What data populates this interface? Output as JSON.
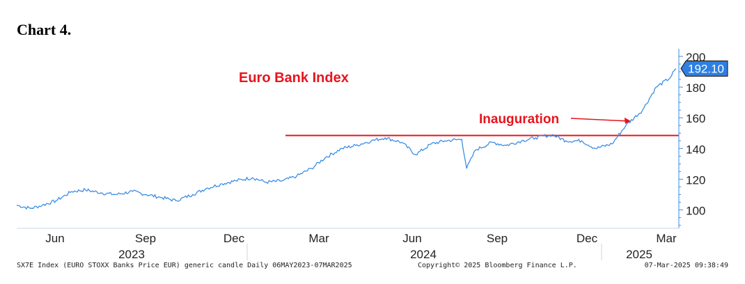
{
  "heading": "Chart 4.",
  "chart_data": {
    "type": "line",
    "title": "Euro Bank Index",
    "ylim": [
      88,
      205
    ],
    "yticks": [
      100,
      120,
      140,
      160,
      180,
      200
    ],
    "x_month_labels": [
      "Jun",
      "Sep",
      "Dec",
      "Mar",
      "Jun",
      "Sep",
      "Dec",
      "Mar"
    ],
    "x_year_labels": [
      "2023",
      "2024",
      "2025"
    ],
    "last_value": "192.10",
    "reference_line": {
      "value": 148.5,
      "color": "#e8141c"
    },
    "annotation": {
      "text": "Inauguration",
      "date": "2025-01-20",
      "value": 157
    },
    "series": [
      {
        "x": [
          "2023-05-06",
          "2023-05-20",
          "2023-06-01",
          "2023-06-15",
          "2023-07-01",
          "2023-07-15",
          "2023-08-01",
          "2023-08-15",
          "2023-09-01",
          "2023-09-15",
          "2023-10-01",
          "2023-10-15",
          "2023-11-01",
          "2023-11-15",
          "2023-12-01",
          "2023-12-15",
          "2024-01-01",
          "2024-01-15",
          "2024-02-01",
          "2024-02-15",
          "2024-03-01",
          "2024-03-15",
          "2024-04-01",
          "2024-04-15",
          "2024-05-01",
          "2024-05-15",
          "2024-06-01",
          "2024-06-15",
          "2024-07-01",
          "2024-07-15",
          "2024-08-01",
          "2024-08-06",
          "2024-08-15",
          "2024-09-01",
          "2024-09-15",
          "2024-10-01",
          "2024-10-15",
          "2024-11-01",
          "2024-11-15",
          "2024-12-01",
          "2024-12-15",
          "2025-01-01",
          "2025-01-15",
          "2025-02-01",
          "2025-02-15",
          "2025-03-01",
          "2025-03-07"
        ],
        "values": [
          103,
          101,
          103,
          106,
          112,
          113,
          111,
          110,
          112,
          110,
          108,
          106,
          110,
          114,
          117,
          119,
          121,
          118,
          119,
          122,
          127,
          134,
          140,
          142,
          145,
          147,
          144,
          136,
          143,
          145,
          146,
          127,
          139,
          144,
          142,
          145,
          147,
          149,
          145,
          145,
          140,
          143,
          155,
          165,
          180,
          186,
          192.1
        ],
        "color": "#3a8ee6"
      }
    ]
  },
  "footer": {
    "left": "SX7E Index (EURO STOXX Banks Price EUR) generic candle  Daily 06MAY2023-07MAR2025",
    "center": "Copyright© 2025 Bloomberg Finance L.P.",
    "right": "07-Mar-2025 09:38:49"
  },
  "colors": {
    "series": "#3a8ee6",
    "axis": "#3a8ee6",
    "reference": "#e8141c",
    "label_box": "#2e7fe0"
  }
}
